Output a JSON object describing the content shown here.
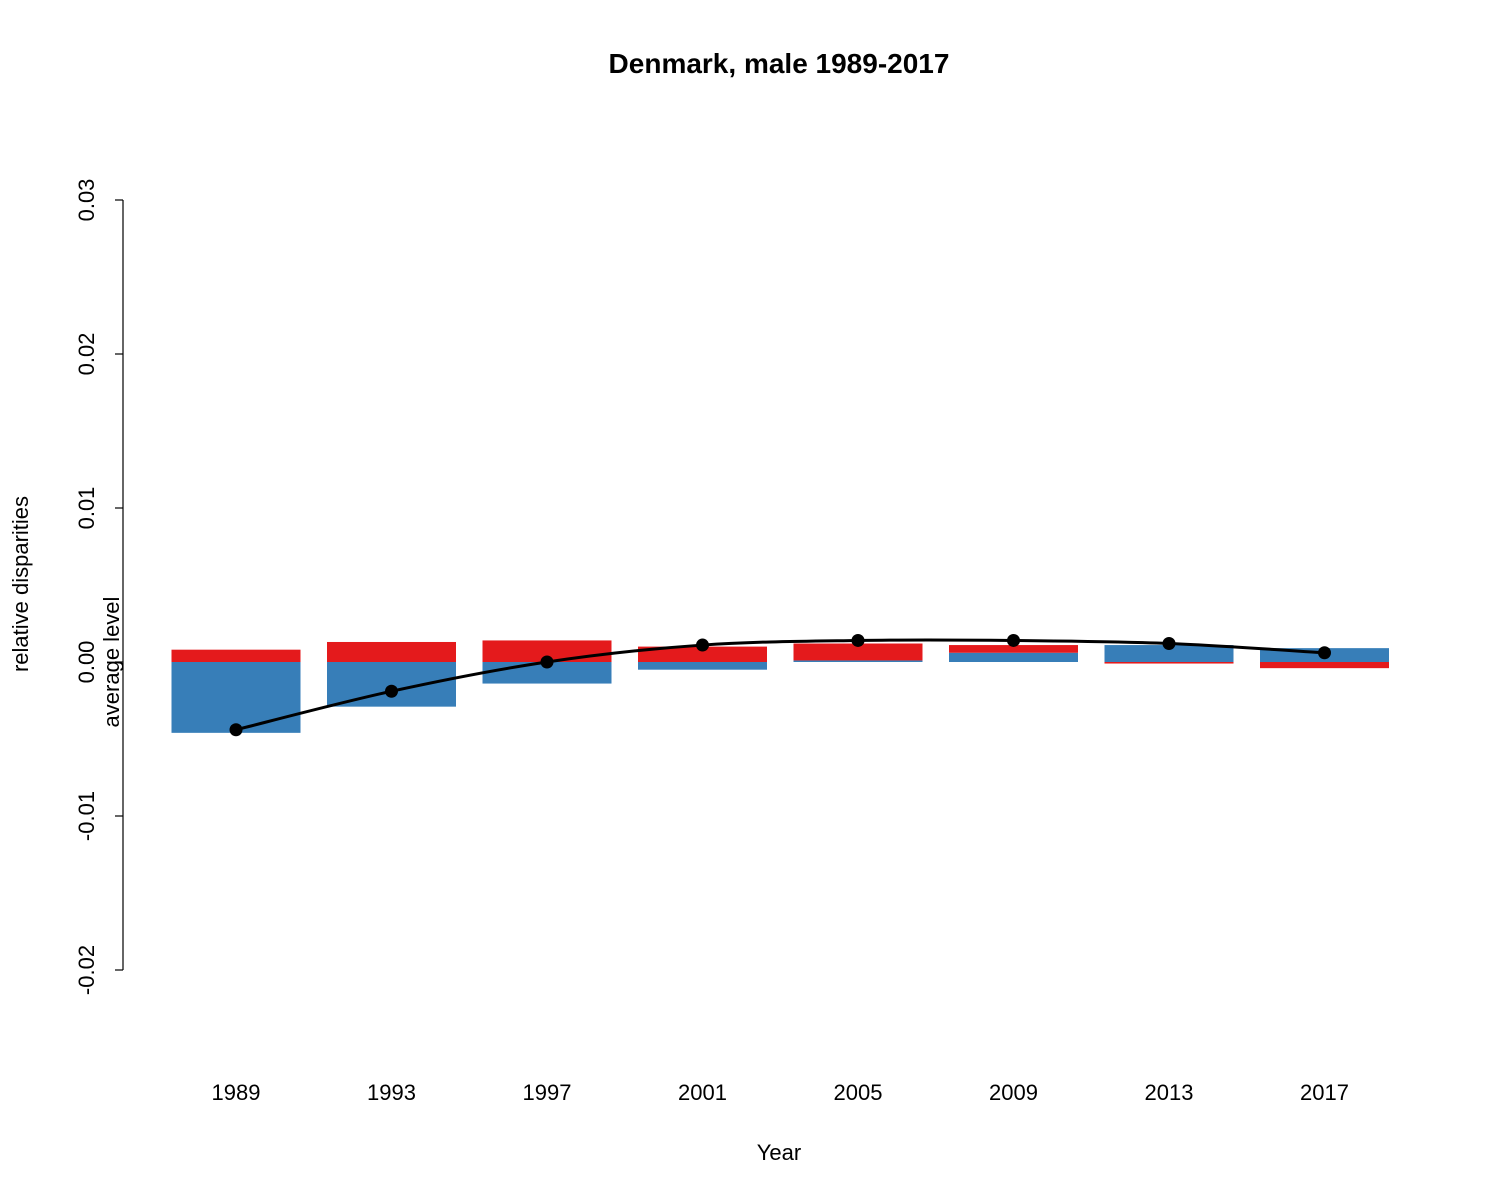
{
  "chart_data": {
    "type": "bar",
    "title": "Denmark, male 1989-2017",
    "xlabel": "Year",
    "ylabel": "relative disparities",
    "ylim": [
      -0.02,
      0.03
    ],
    "yticks": [
      "-0.02",
      "-0.01",
      "0.00",
      "0.01",
      "0.02",
      "0.03"
    ],
    "categories": [
      "1989",
      "1993",
      "1997",
      "2001",
      "2005",
      "2009",
      "2013",
      "2017"
    ],
    "series": [
      {
        "color": "#377EB8",
        "values": [
          -0.0046,
          -0.0029,
          -0.0014,
          -0.0005,
          0.0001,
          0.0006,
          0.0011,
          0.0009
        ]
      },
      {
        "color": "#E41A1C",
        "values": [
          0.0008,
          0.0013,
          0.0014,
          0.001,
          0.0011,
          0.0005,
          -0.0001,
          -0.0004
        ]
      }
    ],
    "line": {
      "name": "average level",
      "color": "#000000",
      "values": [
        -0.0044,
        -0.0019,
        0.0,
        0.0011,
        0.0014,
        0.0014,
        0.0012,
        0.0006
      ]
    }
  }
}
